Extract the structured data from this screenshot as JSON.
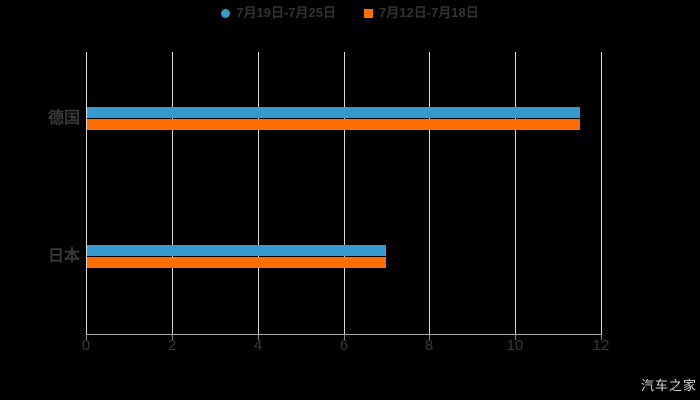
{
  "watermark": "汽车之家",
  "colors": {
    "background": "#000000",
    "gridline": "#d9d9d9",
    "axis_line": "#a8a8a8",
    "tick_mark": "#8a8a8a",
    "tick_text": "#383838",
    "category_text": "#383838",
    "legend_text": "#333333",
    "watermark": "#d9d9d9",
    "series_blue": "#3899CE",
    "series_orange": "#FF6E00"
  },
  "chart_data": {
    "type": "bar",
    "orientation": "horizontal",
    "title": "",
    "xlabel": "",
    "ylabel": "",
    "categories": [
      "德国",
      "日本"
    ],
    "series": [
      {
        "name": "7月19日-7月25日",
        "marker": "circle",
        "color": "#3899CE",
        "values": [
          11.5,
          7
        ]
      },
      {
        "name": "7月12日-7月18日",
        "marker": "square",
        "color": "#FF6E00",
        "values": [
          11.5,
          7
        ]
      }
    ],
    "xlim": [
      0,
      12
    ],
    "xticks": [
      0,
      2,
      4,
      6,
      8,
      10,
      12
    ],
    "grid": true,
    "legend_position": "top"
  }
}
